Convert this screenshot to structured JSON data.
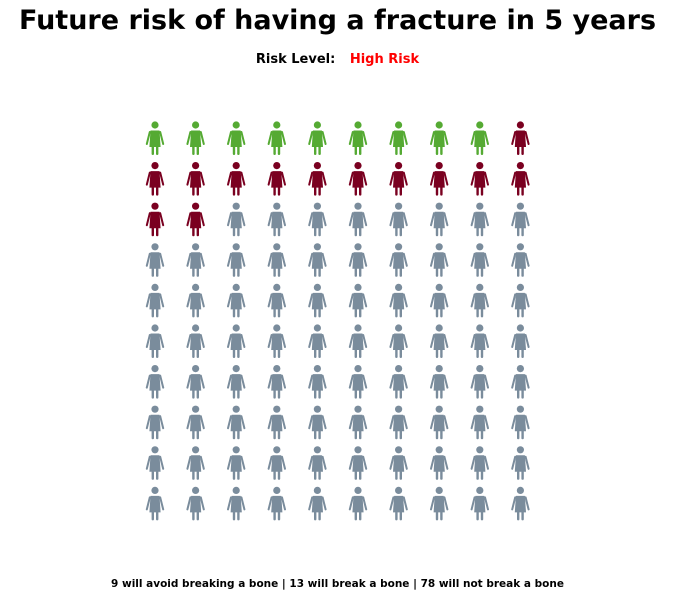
{
  "title": "Future risk of having a fracture in 5 years",
  "risk": {
    "label": "Risk Level:",
    "value": "High Risk",
    "value_color": "#ff0000"
  },
  "footer": "9 will avoid breaking a bone | 13 will break a bone | 78 will not break a bone",
  "chart_data": {
    "type": "pictogram",
    "total": 100,
    "columns": 10,
    "rows": 10,
    "icon": "woman-icon",
    "series": [
      {
        "count": 9,
        "color": "#55aa33"
      },
      {
        "count": 13,
        "color": "#7a0020"
      },
      {
        "count": 78,
        "color": "#7a8c9c"
      }
    ]
  }
}
